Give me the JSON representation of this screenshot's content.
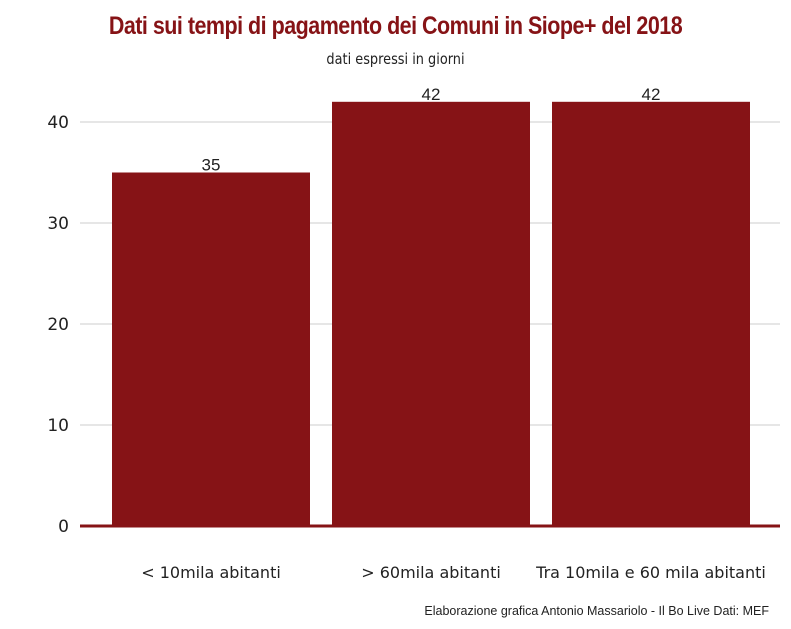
{
  "colors": {
    "bar": "#861316",
    "title": "#861316",
    "grid": "#d6d6d6",
    "axis": "#861316"
  },
  "chart_data": {
    "type": "bar",
    "title": "Dati sui tempi di pagamento dei Comuni in Siope+ del 2018",
    "subtitle": "dati espressi in giorni",
    "categories": [
      "< 10mila abitanti",
      "> 60mila abitanti",
      "Tra 10mila e 60 mila abitanti"
    ],
    "values": [
      35,
      42,
      42
    ],
    "ylim": [
      0,
      40
    ],
    "yticks": [
      0,
      10,
      20,
      30,
      40
    ],
    "grid": true,
    "caption": "Elaborazione grafica Antonio Massariolo - Il Bo Live Dati: MEF"
  }
}
